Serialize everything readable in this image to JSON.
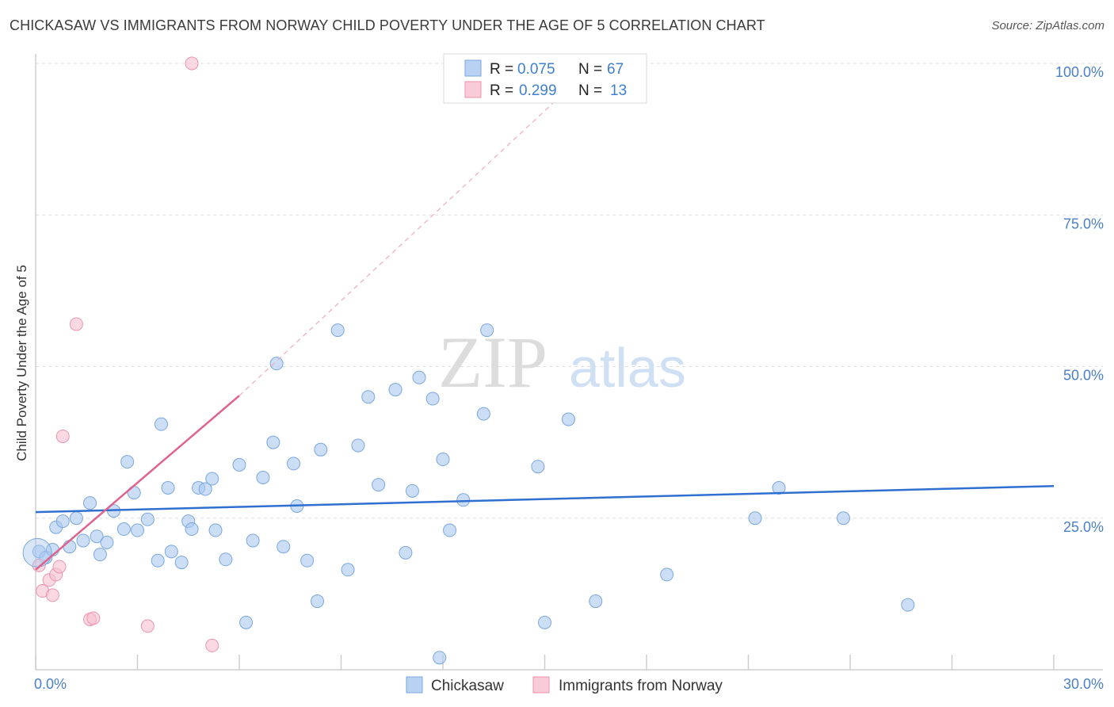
{
  "title": "CHICKASAW VS IMMIGRANTS FROM NORWAY CHILD POVERTY UNDER THE AGE OF 5 CORRELATION CHART",
  "source": "Source: ZipAtlas.com",
  "watermark": {
    "zip": "ZIP",
    "atlas": "atlas"
  },
  "chart_data": {
    "type": "scatter",
    "ylabel": "Child Poverty Under the Age of 5",
    "xlim": [
      0,
      30
    ],
    "ylim": [
      0,
      100
    ],
    "x_tick_labels": [
      "0.0%",
      "30.0%"
    ],
    "y_ticks": [
      25,
      50,
      75,
      100
    ],
    "y_tick_labels": [
      "25.0%",
      "50.0%",
      "75.0%",
      "100.0%"
    ],
    "grid": "horizontal dashed",
    "legend_placement": "top-center",
    "stats": [
      {
        "r_label": "R =",
        "r": "0.075",
        "n_label": "N =",
        "n": "67"
      },
      {
        "r_label": "R =",
        "r": "0.299",
        "n_label": "N =",
        "n": "13"
      }
    ],
    "series": [
      {
        "name": "Chickasaw",
        "color": "#a9c8f0",
        "stroke": "#7aa7df",
        "trend_color": "#2f6fd0",
        "trend": [
          [
            0,
            26.0
          ],
          [
            30,
            30.3
          ]
        ],
        "points": [
          [
            0.1,
            19.5
          ],
          [
            0.3,
            18.5
          ],
          [
            0.5,
            19.8
          ],
          [
            0.6,
            23.5
          ],
          [
            0.8,
            24.5
          ],
          [
            1.0,
            20.3
          ],
          [
            1.2,
            25.0
          ],
          [
            1.4,
            21.3
          ],
          [
            1.6,
            27.5
          ],
          [
            1.8,
            22.0
          ],
          [
            1.9,
            19.0
          ],
          [
            2.1,
            21.0
          ],
          [
            2.3,
            26.2
          ],
          [
            2.6,
            23.2
          ],
          [
            2.7,
            34.3
          ],
          [
            2.9,
            29.2
          ],
          [
            3.0,
            23.0
          ],
          [
            3.3,
            24.8
          ],
          [
            3.6,
            18.0
          ],
          [
            3.7,
            40.5
          ],
          [
            3.9,
            30.0
          ],
          [
            4.0,
            19.5
          ],
          [
            4.3,
            17.7
          ],
          [
            4.5,
            24.5
          ],
          [
            4.6,
            23.2
          ],
          [
            4.8,
            30.0
          ],
          [
            5.0,
            29.8
          ],
          [
            5.2,
            31.5
          ],
          [
            5.3,
            23.0
          ],
          [
            5.6,
            18.2
          ],
          [
            6.0,
            33.8
          ],
          [
            6.2,
            7.8
          ],
          [
            6.4,
            21.3
          ],
          [
            6.7,
            31.7
          ],
          [
            7.0,
            37.5
          ],
          [
            7.1,
            50.5
          ],
          [
            7.3,
            20.3
          ],
          [
            7.6,
            34.0
          ],
          [
            7.7,
            27.0
          ],
          [
            8.0,
            18.0
          ],
          [
            8.3,
            11.3
          ],
          [
            8.4,
            36.3
          ],
          [
            8.9,
            56.0
          ],
          [
            9.2,
            16.5
          ],
          [
            9.5,
            37.0
          ],
          [
            9.8,
            45.0
          ],
          [
            10.1,
            30.5
          ],
          [
            10.6,
            46.2
          ],
          [
            10.9,
            19.3
          ],
          [
            11.1,
            29.5
          ],
          [
            11.3,
            48.2
          ],
          [
            11.7,
            44.7
          ],
          [
            11.9,
            2.0
          ],
          [
            12.0,
            34.7
          ],
          [
            12.2,
            23.0
          ],
          [
            12.6,
            28.0
          ],
          [
            13.2,
            42.2
          ],
          [
            13.3,
            56.0
          ],
          [
            14.8,
            33.5
          ],
          [
            15.0,
            7.8
          ],
          [
            15.7,
            41.3
          ],
          [
            16.5,
            11.3
          ],
          [
            18.6,
            15.7
          ],
          [
            21.2,
            25.0
          ],
          [
            21.9,
            30.0
          ],
          [
            23.8,
            25.0
          ],
          [
            25.7,
            10.7
          ]
        ]
      },
      {
        "name": "Immigrants from Norway",
        "color": "#f7c0d0",
        "stroke": "#ee93ae",
        "trend_color": "#e0628d",
        "trend": [
          [
            0,
            16.5
          ],
          [
            6,
            45.2
          ]
        ],
        "trend_extension": [
          [
            6,
            45.2
          ],
          [
            16.5,
            100
          ]
        ],
        "points": [
          [
            0.1,
            17.2
          ],
          [
            0.2,
            13.0
          ],
          [
            0.4,
            14.8
          ],
          [
            0.5,
            12.3
          ],
          [
            0.6,
            15.7
          ],
          [
            0.7,
            17.0
          ],
          [
            0.8,
            38.5
          ],
          [
            1.2,
            57.0
          ],
          [
            1.6,
            8.3
          ],
          [
            1.7,
            8.5
          ],
          [
            3.3,
            7.2
          ],
          [
            4.6,
            100.0
          ],
          [
            5.2,
            4.0
          ]
        ]
      }
    ]
  }
}
